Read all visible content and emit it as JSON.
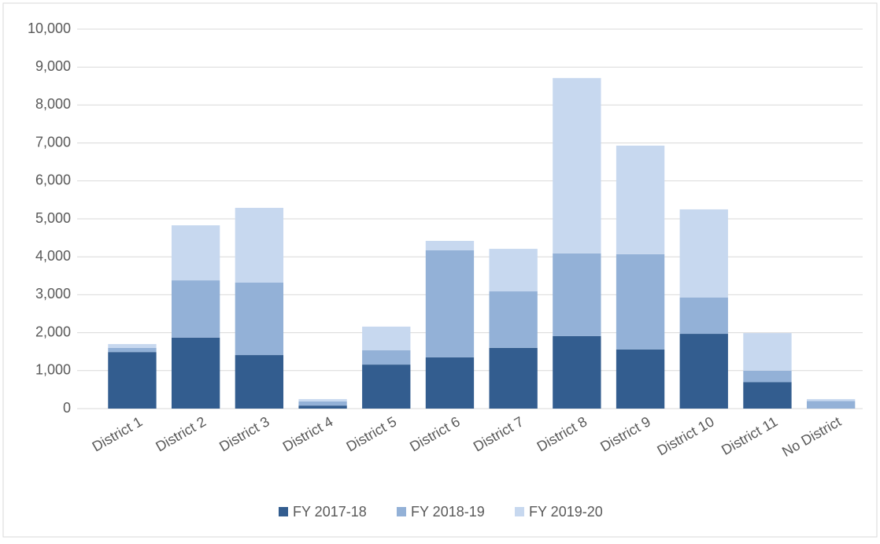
{
  "chart_data": {
    "type": "stacked_bar",
    "categories": [
      "District 1",
      "District 2",
      "District 3",
      "District 4",
      "District 5",
      "District 6",
      "District 7",
      "District 8",
      "District 9",
      "District 10",
      "District 11",
      "No District"
    ],
    "series": [
      {
        "name": "FY 2017-18",
        "color": "#335d8f",
        "values": [
          1490,
          1870,
          1410,
          80,
          1160,
          1350,
          1600,
          1910,
          1560,
          1970,
          700,
          0
        ]
      },
      {
        "name": "FY 2018-19",
        "color": "#93b1d7",
        "values": [
          110,
          1510,
          1910,
          110,
          380,
          2820,
          1490,
          2180,
          2510,
          960,
          300,
          200
        ]
      },
      {
        "name": "FY 2019-20",
        "color": "#c7d8ef",
        "values": [
          100,
          1450,
          1970,
          60,
          620,
          250,
          1120,
          4620,
          2860,
          2320,
          990,
          50
        ]
      }
    ],
    "ylim": [
      0,
      10000
    ],
    "yticks": [
      0,
      {
        "value": 1000,
        "label": "1,000"
      },
      {
        "value": 2000,
        "label": "2,000"
      },
      {
        "value": 3000,
        "label": "3,000"
      },
      {
        "value": 4000,
        "label": "4,000"
      },
      {
        "value": 5000,
        "label": "5,000"
      },
      {
        "value": 6000,
        "label": "6,000"
      },
      {
        "value": 7000,
        "label": "7,000"
      },
      {
        "value": 8000,
        "label": "8,000"
      },
      {
        "value": 9000,
        "label": "9,000"
      },
      {
        "value": 10000,
        "label": "10,000"
      }
    ],
    "legend": "bottom"
  }
}
